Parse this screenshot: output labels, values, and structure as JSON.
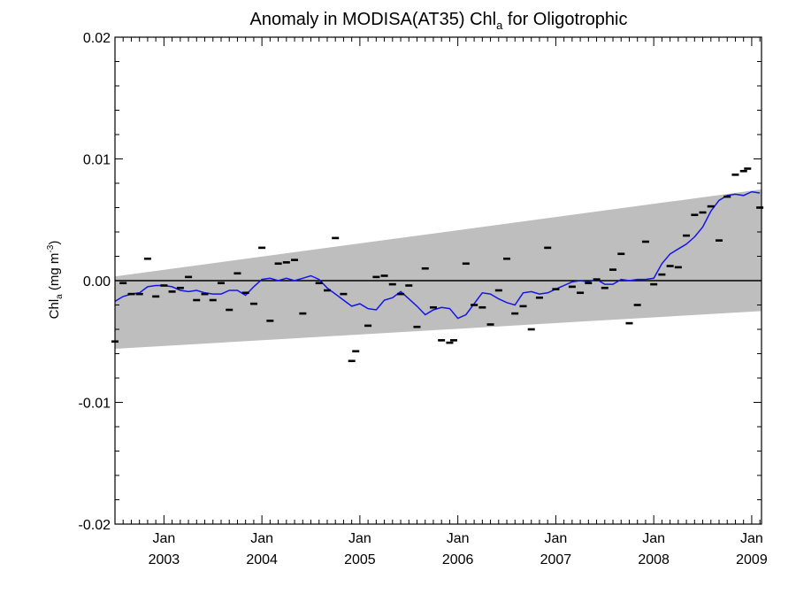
{
  "chart_data": {
    "type": "scatter",
    "title_main": "Anomaly in MODISA(AT35) Chl",
    "title_sub": "a",
    "title_tail": " for Oligotrophic",
    "ylabel_main": "Chl",
    "ylabel_sub": "a",
    "ylabel_unit": " (mg m",
    "ylabel_sup": "-3",
    "ylabel_close": ")",
    "ylim": [
      -0.02,
      0.02
    ],
    "xlim": [
      2002.5,
      2009.1
    ],
    "y_ticks": [
      {
        "value": 0.02,
        "label": "0.02"
      },
      {
        "value": 0.01,
        "label": "0.01"
      },
      {
        "value": 0.0,
        "label": "0.00"
      },
      {
        "value": -0.01,
        "label": "-0.01"
      },
      {
        "value": -0.02,
        "label": "-0.02"
      }
    ],
    "x_ticks": [
      {
        "value": 2003.0,
        "month": "Jan",
        "year": "2003"
      },
      {
        "value": 2004.0,
        "month": "Jan",
        "year": "2004"
      },
      {
        "value": 2005.0,
        "month": "Jan",
        "year": "2005"
      },
      {
        "value": 2006.0,
        "month": "Jan",
        "year": "2006"
      },
      {
        "value": 2007.0,
        "month": "Jan",
        "year": "2007"
      },
      {
        "value": 2008.0,
        "month": "Jan",
        "year": "2008"
      },
      {
        "value": 2009.0,
        "month": "Jan",
        "year": "2009"
      }
    ],
    "band": {
      "x": [
        2002.5,
        2009.1
      ],
      "upper": [
        0.00035,
        0.0075
      ],
      "lower": [
        -0.0056,
        -0.0025
      ]
    },
    "zero_line": 0.0,
    "colors": {
      "band": "#bebebe",
      "series_line": "#1515e6",
      "points": "#000000",
      "zero_line": "#000000"
    },
    "points": [
      {
        "x": 2002.5,
        "y": -0.005
      },
      {
        "x": 2002.583,
        "y": -0.0002
      },
      {
        "x": 2002.667,
        "y": -0.0011
      },
      {
        "x": 2002.75,
        "y": -0.0011
      },
      {
        "x": 2002.833,
        "y": 0.0018
      },
      {
        "x": 2002.917,
        "y": -0.0013
      },
      {
        "x": 2003.0,
        "y": -0.0004
      },
      {
        "x": 2003.083,
        "y": -0.0009
      },
      {
        "x": 2003.167,
        "y": -0.0006
      },
      {
        "x": 2003.25,
        "y": 0.0003
      },
      {
        "x": 2003.333,
        "y": -0.0016
      },
      {
        "x": 2003.417,
        "y": -0.0011
      },
      {
        "x": 2003.5,
        "y": -0.0016
      },
      {
        "x": 2003.583,
        "y": -0.0002
      },
      {
        "x": 2003.667,
        "y": -0.0024
      },
      {
        "x": 2003.75,
        "y": 0.0006
      },
      {
        "x": 2003.833,
        "y": -0.001
      },
      {
        "x": 2003.917,
        "y": -0.0019
      },
      {
        "x": 2004.0,
        "y": 0.0027
      },
      {
        "x": 2004.083,
        "y": -0.0033
      },
      {
        "x": 2004.167,
        "y": 0.0014
      },
      {
        "x": 2004.25,
        "y": 0.0015
      },
      {
        "x": 2004.333,
        "y": 0.0017
      },
      {
        "x": 2004.417,
        "y": -0.0027
      },
      {
        "x": 2004.583,
        "y": -0.0002
      },
      {
        "x": 2004.667,
        "y": -0.0008
      },
      {
        "x": 2004.75,
        "y": 0.0035
      },
      {
        "x": 2004.833,
        "y": -0.0011
      },
      {
        "x": 2004.917,
        "y": -0.0066
      },
      {
        "x": 2004.958,
        "y": -0.0058
      },
      {
        "x": 2005.083,
        "y": -0.0037
      },
      {
        "x": 2005.167,
        "y": 0.0003
      },
      {
        "x": 2005.25,
        "y": 0.0004
      },
      {
        "x": 2005.333,
        "y": -0.0003
      },
      {
        "x": 2005.417,
        "y": -0.0011
      },
      {
        "x": 2005.5,
        "y": -0.0004
      },
      {
        "x": 2005.583,
        "y": -0.0038
      },
      {
        "x": 2005.667,
        "y": 0.001
      },
      {
        "x": 2005.75,
        "y": -0.0022
      },
      {
        "x": 2005.833,
        "y": -0.0049
      },
      {
        "x": 2005.917,
        "y": -0.0051
      },
      {
        "x": 2005.958,
        "y": -0.0049
      },
      {
        "x": 2006.083,
        "y": 0.0014
      },
      {
        "x": 2006.167,
        "y": -0.002
      },
      {
        "x": 2006.25,
        "y": -0.0022
      },
      {
        "x": 2006.333,
        "y": -0.0036
      },
      {
        "x": 2006.417,
        "y": -0.0008
      },
      {
        "x": 2006.5,
        "y": 0.0018
      },
      {
        "x": 2006.583,
        "y": -0.0027
      },
      {
        "x": 2006.667,
        "y": -0.0021
      },
      {
        "x": 2006.75,
        "y": -0.004
      },
      {
        "x": 2006.833,
        "y": -0.0014
      },
      {
        "x": 2006.917,
        "y": 0.0027
      },
      {
        "x": 2007.0,
        "y": -0.0007
      },
      {
        "x": 2007.167,
        "y": -0.0005
      },
      {
        "x": 2007.25,
        "y": -0.001
      },
      {
        "x": 2007.333,
        "y": -0.0002
      },
      {
        "x": 2007.417,
        "y": 0.0001
      },
      {
        "x": 2007.5,
        "y": -0.0006
      },
      {
        "x": 2007.583,
        "y": 0.0009
      },
      {
        "x": 2007.667,
        "y": 0.0022
      },
      {
        "x": 2007.75,
        "y": -0.0035
      },
      {
        "x": 2007.833,
        "y": -0.002
      },
      {
        "x": 2007.917,
        "y": 0.0032
      },
      {
        "x": 2008.0,
        "y": -0.0003
      },
      {
        "x": 2008.083,
        "y": 0.0005
      },
      {
        "x": 2008.167,
        "y": 0.0012
      },
      {
        "x": 2008.25,
        "y": 0.0011
      },
      {
        "x": 2008.333,
        "y": 0.0037
      },
      {
        "x": 2008.417,
        "y": 0.0054
      },
      {
        "x": 2008.5,
        "y": 0.0056
      },
      {
        "x": 2008.583,
        "y": 0.0061
      },
      {
        "x": 2008.667,
        "y": 0.0033
      },
      {
        "x": 2008.75,
        "y": 0.0069
      },
      {
        "x": 2008.833,
        "y": 0.0087
      },
      {
        "x": 2008.917,
        "y": 0.009
      },
      {
        "x": 2008.958,
        "y": 0.0092
      },
      {
        "x": 2009.083,
        "y": 0.006
      }
    ],
    "series_line": {
      "x": [
        2002.5,
        2002.583,
        2002.667,
        2002.75,
        2002.833,
        2002.917,
        2003.0,
        2003.083,
        2003.167,
        2003.25,
        2003.333,
        2003.417,
        2003.5,
        2003.583,
        2003.667,
        2003.75,
        2003.833,
        2003.917,
        2004.0,
        2004.083,
        2004.167,
        2004.25,
        2004.333,
        2004.417,
        2004.5,
        2004.583,
        2004.667,
        2004.75,
        2004.833,
        2004.917,
        2005.0,
        2005.083,
        2005.167,
        2005.25,
        2005.333,
        2005.417,
        2005.5,
        2005.583,
        2005.667,
        2005.75,
        2005.833,
        2005.917,
        2006.0,
        2006.083,
        2006.167,
        2006.25,
        2006.333,
        2006.417,
        2006.5,
        2006.583,
        2006.667,
        2006.75,
        2006.833,
        2006.917,
        2007.0,
        2007.083,
        2007.167,
        2007.25,
        2007.333,
        2007.417,
        2007.5,
        2007.583,
        2007.667,
        2007.75,
        2007.833,
        2007.917,
        2008.0,
        2008.083,
        2008.167,
        2008.25,
        2008.333,
        2008.417,
        2008.5,
        2008.583,
        2008.667,
        2008.75,
        2008.833,
        2008.917,
        2009.0,
        2009.083
      ],
      "y": [
        -0.0017,
        -0.0013,
        -0.0011,
        -0.001,
        -0.0005,
        -0.0004,
        -0.0004,
        -0.0005,
        -0.0008,
        -0.0009,
        -0.0008,
        -0.001,
        -0.0011,
        -0.0011,
        -0.0008,
        -0.0008,
        -0.0012,
        -0.0005,
        0.0001,
        0.0002,
        0.0,
        0.0002,
        0.0,
        0.0002,
        0.0004,
        0.0001,
        -0.0006,
        -0.0011,
        -0.0016,
        -0.0021,
        -0.0019,
        -0.0023,
        -0.0024,
        -0.0016,
        -0.0014,
        -0.0009,
        -0.0015,
        -0.0021,
        -0.0028,
        -0.0024,
        -0.0022,
        -0.0023,
        -0.0031,
        -0.0028,
        -0.0019,
        -0.001,
        -0.0011,
        -0.0015,
        -0.0018,
        -0.002,
        -0.001,
        -0.0009,
        -0.0011,
        -0.001,
        -0.0007,
        -0.0004,
        -0.0001,
        0.0,
        -0.0001,
        0.0001,
        -0.0003,
        -0.0003,
        0.0001,
        0.0,
        0.0001,
        0.0001,
        0.0002,
        0.0014,
        0.0022,
        0.0026,
        0.003,
        0.0036,
        0.0044,
        0.0057,
        0.0066,
        0.007,
        0.0071,
        0.007,
        0.0073,
        0.0072
      ]
    }
  }
}
